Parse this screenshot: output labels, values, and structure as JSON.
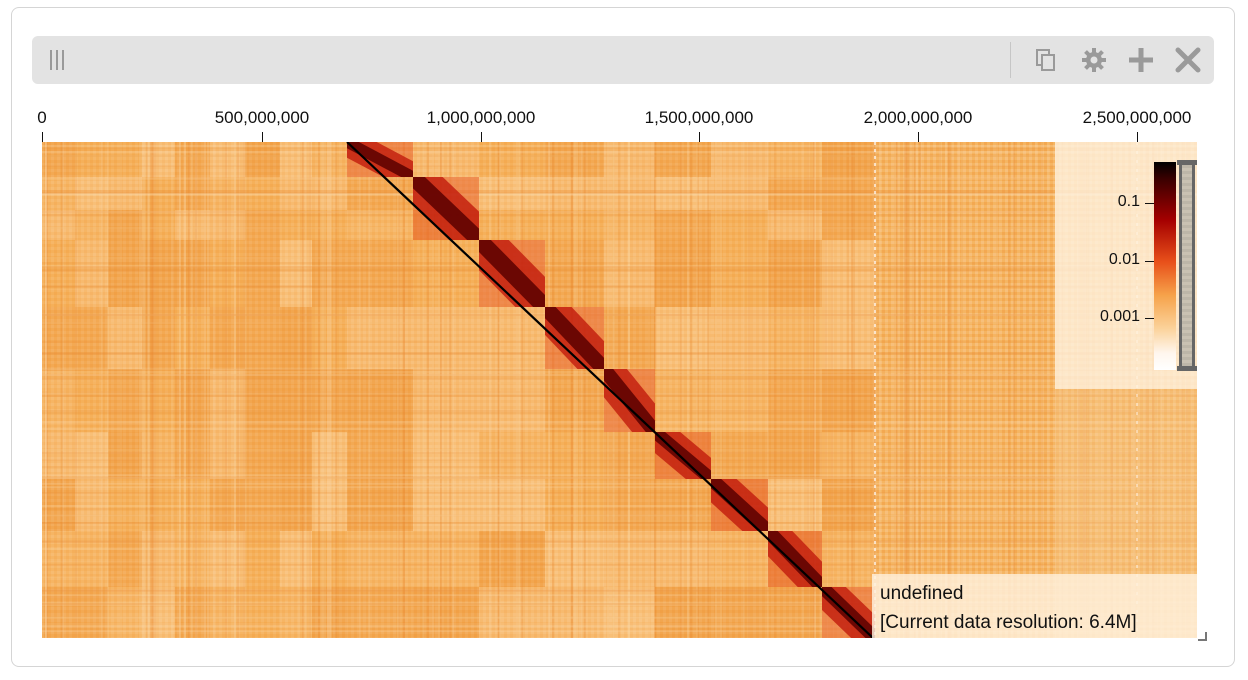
{
  "toolbar": {
    "icons": [
      "drag-handle-icon",
      "copy-icon",
      "gear-icon",
      "plus-icon",
      "close-icon"
    ]
  },
  "ruler": {
    "ticks": [
      "0",
      "500,000,000",
      "1,000,000,000",
      "1,500,000,000",
      "2,000,000,000",
      "2,500,000,000"
    ]
  },
  "heatmap": {
    "colormap": [
      "#fff6ee",
      "#f7c07a",
      "#f0902f",
      "#d8401a",
      "#8c0000",
      "#000000"
    ]
  },
  "legend": {
    "labels": [
      "0.1",
      "0.01",
      "0.001"
    ]
  },
  "info": {
    "name": "undefined",
    "resolution": "[Current data resolution: 6.4M]"
  },
  "colors": {
    "panel_border": "#d5d5d5",
    "toolbar_bg": "#e3e3e3",
    "icon": "#9a9a9a"
  }
}
